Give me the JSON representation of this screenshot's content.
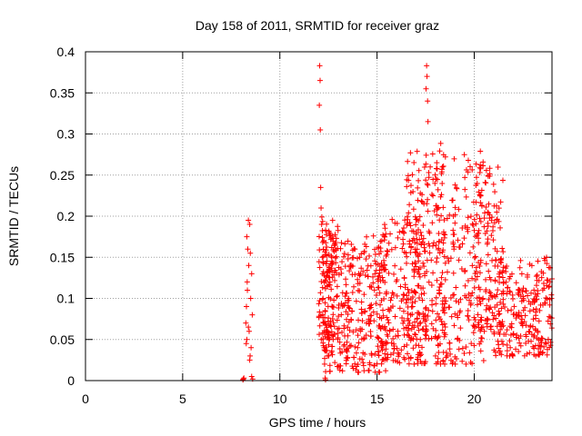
{
  "chart_data": {
    "type": "scatter",
    "title": "Day 158 of 2011, SRMTID for receiver graz",
    "xlabel": "GPS time / hours",
    "ylabel": "SRMTID / TECUs",
    "xlim": [
      0,
      24
    ],
    "ylim": [
      0,
      0.4
    ],
    "x_ticks": [
      0,
      5,
      10,
      15,
      20
    ],
    "y_ticks": [
      0,
      0.05,
      0.1,
      0.15,
      0.2,
      0.25,
      0.3,
      0.35,
      0.4
    ],
    "x_tick_labels": [
      "0",
      "5",
      "10",
      "15",
      "20"
    ],
    "y_tick_labels": [
      "0",
      "0.05",
      "0.1",
      "0.15",
      "0.2",
      "0.25",
      "0.3",
      "0.35",
      "0.4"
    ],
    "grid": true,
    "marker": "+",
    "series_color": "#ff0000",
    "points": [
      [
        8.1,
        0.001
      ],
      [
        8.12,
        0.002
      ],
      [
        8.15,
        0.003
      ],
      [
        8.25,
        0.07
      ],
      [
        8.28,
        0.09
      ],
      [
        8.3,
        0.05
      ],
      [
        8.32,
        0.12
      ],
      [
        8.35,
        0.16
      ],
      [
        8.38,
        0.195
      ],
      [
        8.4,
        0.14
      ],
      [
        8.42,
        0.06
      ],
      [
        8.45,
        0.19
      ],
      [
        8.47,
        0.03
      ],
      [
        8.5,
        0.1
      ],
      [
        8.52,
        0.04
      ],
      [
        8.55,
        0.13
      ],
      [
        8.58,
        0.08
      ],
      [
        8.3,
        0.175
      ],
      [
        8.45,
        0.025
      ],
      [
        8.38,
        0.065
      ],
      [
        8.55,
        0.005
      ],
      [
        8.6,
        0.002
      ],
      [
        8.33,
        0.11
      ],
      [
        8.48,
        0.155
      ],
      [
        8.27,
        0.045
      ],
      [
        12.05,
        0.383
      ],
      [
        12.07,
        0.365
      ],
      [
        12.03,
        0.335
      ],
      [
        12.08,
        0.305
      ],
      [
        12.1,
        0.235
      ],
      [
        12.12,
        0.21
      ],
      [
        12.15,
        0.19
      ],
      [
        12.18,
        0.15
      ],
      [
        12.2,
        0.13
      ],
      [
        12.22,
        0.1
      ],
      [
        12.25,
        0.07
      ],
      [
        12.28,
        0.04
      ],
      [
        12.3,
        0.02
      ],
      [
        12.33,
        0.003
      ],
      [
        12.35,
        0.001
      ],
      [
        17.55,
        0.383
      ],
      [
        17.57,
        0.37
      ],
      [
        17.6,
        0.34
      ],
      [
        17.62,
        0.315
      ],
      [
        17.52,
        0.355
      ]
    ],
    "noise_clusters": [
      {
        "x_range": [
          12.0,
          13.0
        ],
        "y_range": [
          0.05,
          0.2
        ],
        "count": 120
      },
      {
        "x_range": [
          12.2,
          15.5
        ],
        "y_range": [
          0.01,
          0.18
        ],
        "count": 320
      },
      {
        "x_range": [
          15.0,
          17.5
        ],
        "y_range": [
          0.02,
          0.2
        ],
        "count": 220
      },
      {
        "x_range": [
          16.5,
          18.5
        ],
        "y_range": [
          0.05,
          0.28
        ],
        "count": 180
      },
      {
        "x_range": [
          18.0,
          20.5
        ],
        "y_range": [
          0.02,
          0.29
        ],
        "count": 220
      },
      {
        "x_range": [
          20.0,
          21.5
        ],
        "y_range": [
          0.06,
          0.26
        ],
        "count": 140
      },
      {
        "x_range": [
          21.0,
          24.0
        ],
        "y_range": [
          0.03,
          0.15
        ],
        "count": 240
      }
    ]
  }
}
